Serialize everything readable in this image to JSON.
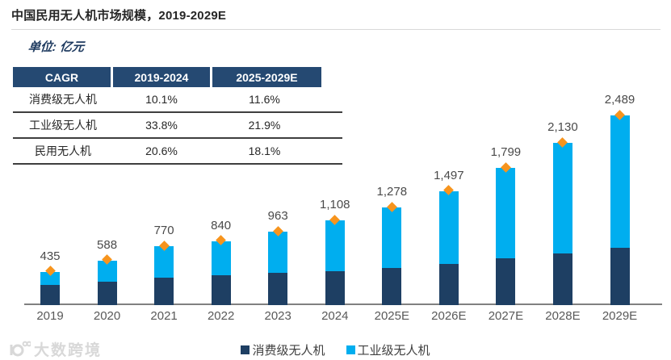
{
  "header": {
    "title": "中国民用无人机市场规模，2019-2029E",
    "unit": "单位: 亿元"
  },
  "cagr_table": {
    "headers": [
      "CAGR",
      "2019-2024",
      "2025-2029E"
    ],
    "rows": [
      [
        "消费级无人机",
        "10.1%",
        "11.6%"
      ],
      [
        "工业级无人机",
        "33.8%",
        "21.9%"
      ],
      [
        "民用无人机",
        "20.6%",
        "18.1%"
      ]
    ]
  },
  "chart_data": {
    "type": "bar",
    "stacked": true,
    "title": "中国民用无人机市场规模，2019-2029E",
    "unit": "亿元",
    "categories": [
      "2019",
      "2020",
      "2021",
      "2022",
      "2023",
      "2024",
      "2025E",
      "2026E",
      "2027E",
      "2028E",
      "2029E"
    ],
    "totals": [
      435,
      588,
      770,
      840,
      963,
      1108,
      1278,
      1497,
      1799,
      2130,
      2489
    ],
    "total_labels": [
      "435",
      "588",
      "770",
      "840",
      "963",
      "1,108",
      "1,278",
      "1,497",
      "1,799",
      "2,130",
      "2,489"
    ],
    "series": [
      {
        "name": "消费级无人机",
        "color": "#1e3f63",
        "values_estimated_from_pixels": true,
        "values": [
          265,
          305,
          365,
          395,
          425,
          440,
          490,
          540,
          610,
          680,
          755
        ]
      },
      {
        "name": "工业级无人机",
        "color": "#00aeef",
        "values_estimated_from_pixels": true,
        "values": [
          170,
          283,
          405,
          445,
          538,
          668,
          788,
          957,
          1189,
          1450,
          1734
        ]
      }
    ],
    "marker": {
      "shape": "diamond",
      "color": "#f7941d",
      "position": "top-of-each-bar"
    },
    "ylim": [
      0,
      2600
    ],
    "grid": false,
    "legend_position": "bottom-center",
    "value_labels_shown": true
  },
  "colors": {
    "navy": "#1e3f63",
    "table_header_navy": "#254972",
    "light_blue": "#00aeef",
    "orange_marker": "#f7941d",
    "axis_line": "#808080",
    "label_gray": "#4a4a4a"
  },
  "watermark": {
    "text": "大数跨境"
  }
}
